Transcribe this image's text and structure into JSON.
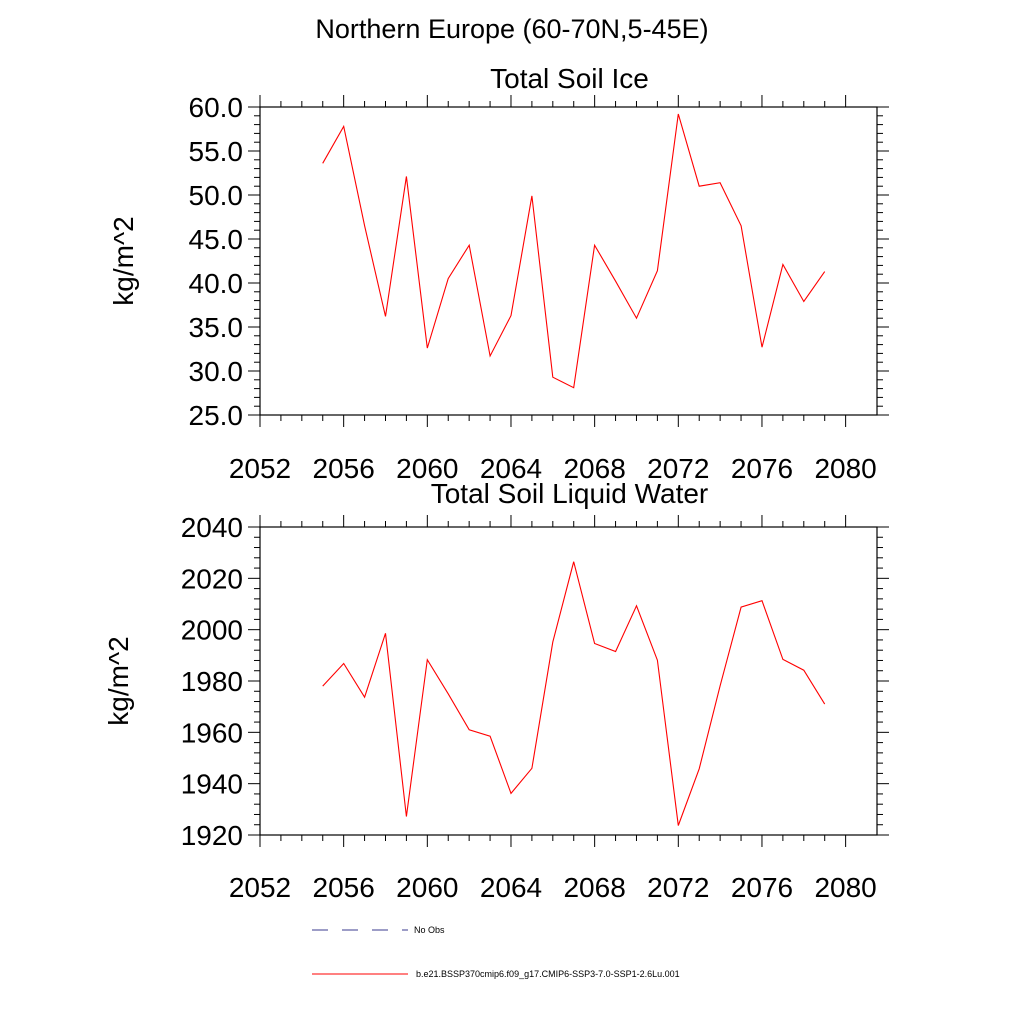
{
  "figure": {
    "title": "Northern Europe (60-70N,5-45E)"
  },
  "legend": {
    "entries": [
      {
        "label": "No Obs",
        "color": "#3b3b8f",
        "style": "dashed"
      },
      {
        "label": "b.e21.BSSP370cmip6.f09_g17.CMIP6-SSP3-7.0-SSP1-2.6Lu.001",
        "color": "#ff0000",
        "style": "solid"
      }
    ]
  },
  "chart_data": [
    {
      "type": "line",
      "title": "Total Soil Ice",
      "xlabel": "",
      "ylabel": "kg/m^2",
      "xlim": [
        2052,
        2081.5
      ],
      "ylim": [
        25,
        60
      ],
      "xticks": [
        2052,
        2056,
        2060,
        2064,
        2068,
        2072,
        2076,
        2080
      ],
      "yticks": [
        "25.0",
        "30.0",
        "35.0",
        "40.0",
        "45.0",
        "50.0",
        "55.0",
        "60.0"
      ],
      "series": [
        {
          "color": "#ff0000",
          "x": [
            2055,
            2056,
            2057,
            2058,
            2059,
            2060,
            2061,
            2062,
            2063,
            2064,
            2065,
            2066,
            2067,
            2068,
            2069,
            2070,
            2071,
            2072,
            2073,
            2074,
            2075,
            2076,
            2077,
            2078,
            2079
          ],
          "values": [
            53.6,
            57.8,
            46.5,
            36.2,
            52.1,
            32.6,
            40.5,
            44.3,
            31.7,
            36.3,
            49.9,
            29.3,
            28.1,
            44.3,
            40.2,
            36.0,
            41.4,
            59.2,
            51.0,
            51.4,
            46.5,
            32.7,
            42.1,
            37.9,
            41.3
          ]
        }
      ]
    },
    {
      "type": "line",
      "title": "Total Soil Liquid Water",
      "xlabel": "",
      "ylabel": "kg/m^2",
      "xlim": [
        2052,
        2081.5
      ],
      "ylim": [
        1920,
        2040
      ],
      "xticks": [
        2052,
        2056,
        2060,
        2064,
        2068,
        2072,
        2076,
        2080
      ],
      "yticks": [
        "1920",
        "1940",
        "1960",
        "1980",
        "2000",
        "2020",
        "2040"
      ],
      "series": [
        {
          "color": "#ff0000",
          "x": [
            2055,
            2056,
            2057,
            2058,
            2059,
            2060,
            2061,
            2062,
            2063,
            2064,
            2065,
            2066,
            2067,
            2068,
            2069,
            2070,
            2071,
            2072,
            2073,
            2074,
            2075,
            2076,
            2077,
            2078,
            2079
          ],
          "values": [
            1978.0,
            1986.8,
            1973.7,
            1998.6,
            1927.2,
            1988.3,
            1975.0,
            1961.0,
            1958.5,
            1936.2,
            1946.0,
            1995.2,
            2026.5,
            1994.6,
            1991.5,
            2009.3,
            1988.1,
            1923.7,
            1945.8,
            1978.1,
            2008.8,
            2011.3,
            1988.4,
            1984.2,
            1971.0
          ]
        }
      ]
    }
  ]
}
